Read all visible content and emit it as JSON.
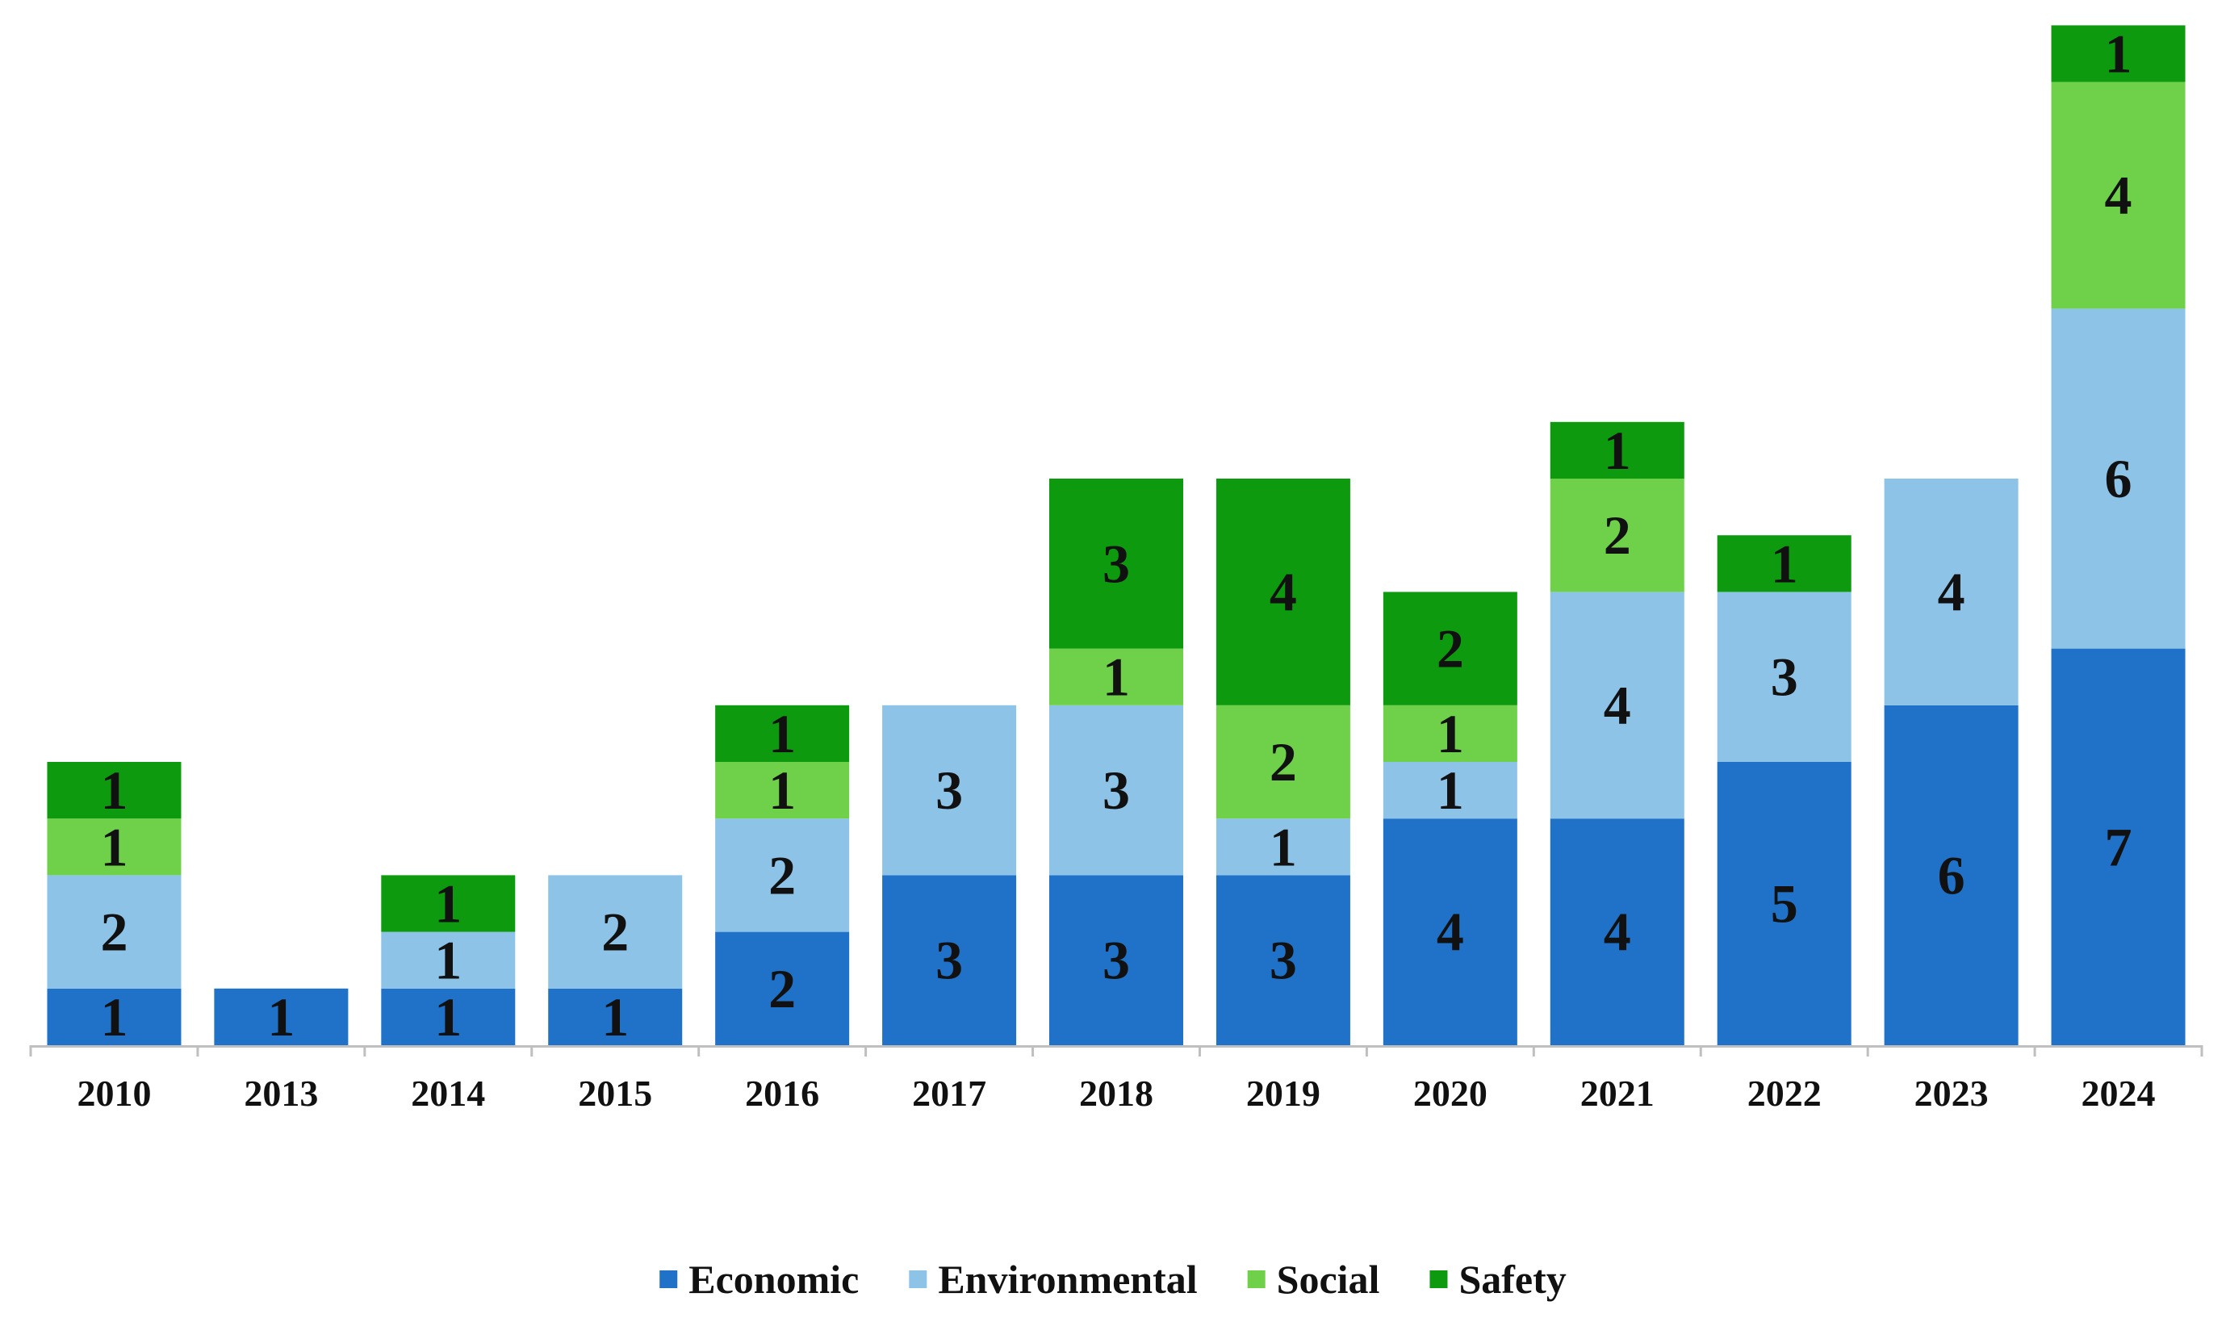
{
  "chart_data": {
    "type": "bar",
    "stacked": true,
    "title": "",
    "xlabel": "",
    "ylabel": "",
    "ylim": [
      0,
      18
    ],
    "grid": false,
    "legend_position": "bottom-center",
    "categories": [
      "2010",
      "2013",
      "2014",
      "2015",
      "2016",
      "2017",
      "2018",
      "2019",
      "2020",
      "2021",
      "2022",
      "2023",
      "2024"
    ],
    "series": [
      {
        "name": "Economic",
        "color": "#1f72c7",
        "values": [
          1,
          1,
          1,
          1,
          2,
          3,
          3,
          3,
          4,
          4,
          5,
          6,
          7
        ]
      },
      {
        "name": "Environmental",
        "color": "#8ec3e8",
        "values": [
          2,
          0,
          1,
          2,
          2,
          3,
          3,
          1,
          1,
          4,
          3,
          4,
          6
        ]
      },
      {
        "name": "Social",
        "color": "#6fd14a",
        "values": [
          1,
          0,
          0,
          0,
          1,
          0,
          1,
          2,
          1,
          2,
          0,
          0,
          4
        ]
      },
      {
        "name": "Safety",
        "color": "#0e9a0e",
        "values": [
          1,
          0,
          1,
          0,
          1,
          0,
          3,
          4,
          2,
          1,
          1,
          0,
          1
        ]
      }
    ]
  }
}
